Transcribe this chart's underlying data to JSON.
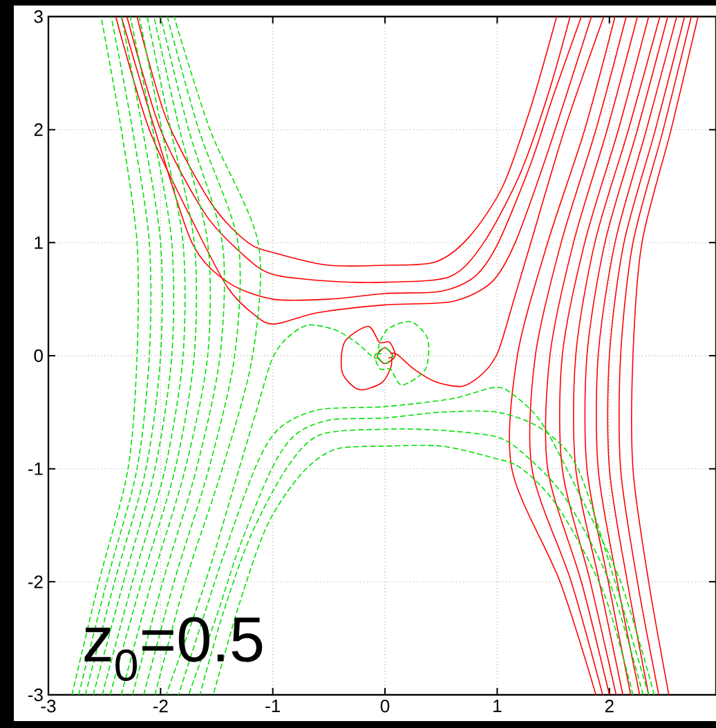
{
  "chart_data": {
    "type": "line",
    "xlim": [
      -3,
      2.95
    ],
    "ylim": [
      -3,
      3
    ],
    "xticks": [
      -3,
      -2,
      -1,
      0,
      1,
      2
    ],
    "yticks": [
      -3,
      -2,
      -1,
      0,
      1,
      2,
      3
    ],
    "grid": true,
    "annotations": [
      "z$_{0}$=0.5"
    ],
    "series": [
      {
        "color": "#ff0000",
        "line_style": "solid",
        "x": [
          -2.21,
          -1.95,
          -1.55,
          -1.22,
          -0.95,
          -0.5,
          0,
          0.45,
          0.75,
          1.05,
          1.3,
          1.53
        ],
        "values": [
          3,
          2.1,
          1.35,
          1.0,
          0.9,
          0.8,
          0.8,
          0.83,
          1.05,
          1.5,
          2.2,
          3
        ]
      },
      {
        "color": "#ff0000",
        "line_style": "solid",
        "x": [
          -2.3,
          -2.0,
          -1.6,
          -1.25,
          -1.0,
          -0.5,
          0,
          0.58,
          0.88,
          1.2,
          1.45,
          1.65
        ],
        "values": [
          3,
          2.0,
          1.25,
          0.88,
          0.72,
          0.66,
          0.65,
          0.7,
          1.0,
          1.6,
          2.3,
          3
        ]
      },
      {
        "color": "#ff0000",
        "line_style": "solid",
        "x": [
          -2.35,
          -2.05,
          -1.72,
          -1.4,
          -1.0,
          -0.5,
          0,
          0.5,
          0.8,
          1.01,
          1.3,
          1.5,
          1.75
        ],
        "values": [
          3,
          2.0,
          1.0,
          0.65,
          0.5,
          0.5,
          0.55,
          0.57,
          0.7,
          1.0,
          1.7,
          2.3,
          3
        ]
      },
      {
        "color": "#ff0000",
        "line_style": "solid",
        "x": [
          -2.4,
          -2.1,
          -1.72,
          -1.4,
          -1.15,
          -0.98,
          -0.6,
          0,
          0.6,
          0.95,
          1.16,
          1.45,
          1.84
        ],
        "values": [
          3,
          2.0,
          1.2,
          0.6,
          0.35,
          0.28,
          0.38,
          0.45,
          0.48,
          0.65,
          1.0,
          1.8,
          3
        ]
      },
      {
        "color": "#ff0000",
        "line_style": "solid",
        "x": [
          0.03,
          0.07,
          0.0,
          -0.07,
          0.0,
          0.09,
          0.04,
          -0.05,
          -0.15,
          -0.36,
          -0.38,
          -0.23,
          -0.03,
          0.05,
          0.06
        ],
        "values": [
          -0.02,
          0.0,
          0.07,
          0.0,
          -0.07,
          0.0,
          0.12,
          0.12,
          0.26,
          0.12,
          -0.15,
          -0.3,
          -0.24,
          -0.11,
          -0.02
        ]
      },
      {
        "color": "#ff0000",
        "line_style": "solid",
        "x": [
          0.05,
          0.11,
          0.26,
          0.45,
          0.69,
          0.88,
          1.01,
          1.15,
          1.3,
          1.6,
          1.95
        ],
        "values": [
          0.02,
          0.01,
          -0.12,
          -0.23,
          -0.27,
          -0.15,
          0.04,
          0.5,
          1.0,
          2.0,
          3
        ]
      },
      {
        "color": "#ff0000",
        "line_style": "solid",
        "x": [
          2.05,
          1.78,
          1.45,
          1.18,
          1.13,
          1.56,
          1.88
        ],
        "values": [
          3,
          2,
          1,
          0,
          -1,
          -2,
          -3
        ]
      },
      {
        "color": "#ff0000",
        "line_style": "solid",
        "x": [
          2.15,
          1.88,
          1.57,
          1.34,
          1.31,
          1.66,
          1.94
        ],
        "values": [
          3,
          2,
          1,
          0,
          -1,
          -2,
          -3
        ]
      },
      {
        "color": "#ff0000",
        "line_style": "solid",
        "x": [
          2.25,
          1.98,
          1.68,
          1.47,
          1.45,
          1.75,
          2.0
        ],
        "values": [
          3,
          2,
          1,
          0,
          -1,
          -2,
          -3
        ]
      },
      {
        "color": "#ff0000",
        "line_style": "solid",
        "x": [
          2.35,
          2.08,
          1.78,
          1.58,
          1.58,
          1.83,
          2.06
        ],
        "values": [
          3,
          2,
          1,
          0,
          -1,
          -2,
          -3
        ]
      },
      {
        "color": "#ff0000",
        "line_style": "solid",
        "x": [
          2.45,
          2.17,
          1.87,
          1.7,
          1.7,
          1.91,
          2.12
        ],
        "values": [
          3,
          2,
          1,
          0,
          -1,
          -2,
          -3
        ]
      },
      {
        "color": "#ff0000",
        "line_style": "solid",
        "x": [
          2.52,
          2.25,
          1.96,
          1.8,
          1.8,
          1.99,
          2.19
        ],
        "values": [
          3,
          2,
          1,
          0,
          -1,
          -2,
          -3
        ]
      },
      {
        "color": "#ff0000",
        "line_style": "solid",
        "x": [
          2.6,
          2.33,
          2.05,
          1.9,
          1.9,
          2.07,
          2.27
        ],
        "values": [
          3,
          2,
          1,
          0,
          -1,
          -2,
          -3
        ]
      },
      {
        "color": "#ff0000",
        "line_style": "solid",
        "x": [
          2.67,
          2.41,
          2.13,
          2.0,
          2.0,
          2.16,
          2.35
        ],
        "values": [
          3,
          2,
          1,
          0,
          -1,
          -2,
          -3
        ]
      },
      {
        "color": "#ff0000",
        "line_style": "solid",
        "x": [
          2.73,
          2.48,
          2.21,
          2.1,
          2.1,
          2.25,
          2.44
        ],
        "values": [
          3,
          2,
          1,
          0,
          -1,
          -2,
          -3
        ]
      },
      {
        "color": "#ff0000",
        "line_style": "solid",
        "x": [
          2.79,
          2.55,
          2.29,
          2.21,
          2.21,
          2.35,
          2.53
        ],
        "values": [
          3,
          2,
          1,
          0,
          -1,
          -2,
          -3
        ]
      },
      {
        "color": "#00e000",
        "line_style": "dashed",
        "x": [
          2.21,
          1.95,
          1.55,
          1.22,
          0.95,
          0.5,
          0,
          -0.45,
          -0.75,
          -1.05,
          -1.3,
          -1.53
        ],
        "values": [
          -3,
          -2.1,
          -1.35,
          -1.0,
          -0.9,
          -0.8,
          -0.8,
          -0.83,
          -1.05,
          -1.5,
          -2.2,
          -3
        ]
      },
      {
        "color": "#00e000",
        "line_style": "dashed",
        "x": [
          2.3,
          2.0,
          1.6,
          1.25,
          1.0,
          0.5,
          0,
          -0.58,
          -0.88,
          -1.2,
          -1.45,
          -1.65
        ],
        "values": [
          -3,
          -2.0,
          -1.25,
          -0.88,
          -0.72,
          -0.66,
          -0.65,
          -0.7,
          -1.0,
          -1.6,
          -2.3,
          -3
        ]
      },
      {
        "color": "#00e000",
        "line_style": "dashed",
        "x": [
          2.35,
          2.05,
          1.72,
          1.4,
          1.0,
          0.5,
          0,
          -0.5,
          -0.8,
          -1.01,
          -1.3,
          -1.5,
          -1.75
        ],
        "values": [
          -3,
          -2.0,
          -1.0,
          -0.65,
          -0.5,
          -0.5,
          -0.55,
          -0.57,
          -0.7,
          -1.0,
          -1.7,
          -2.3,
          -3
        ]
      },
      {
        "color": "#00e000",
        "line_style": "dashed",
        "x": [
          2.4,
          2.1,
          1.72,
          1.4,
          1.15,
          0.98,
          0.6,
          0,
          -0.6,
          -0.95,
          -1.16,
          -1.45,
          -1.84
        ],
        "values": [
          -3,
          -2.0,
          -1.2,
          -0.6,
          -0.35,
          -0.28,
          -0.38,
          -0.45,
          -0.48,
          -0.65,
          -1.0,
          -1.8,
          -3
        ]
      },
      {
        "color": "#00e000",
        "line_style": "dashed",
        "x": [
          -0.03,
          -0.07,
          0.0,
          0.07,
          0.0,
          -0.09,
          -0.04,
          0.05,
          0.15,
          0.36,
          0.38,
          0.23,
          0.03,
          -0.05,
          -0.06
        ],
        "values": [
          0.02,
          0.0,
          -0.07,
          0.0,
          0.07,
          0.0,
          -0.12,
          -0.12,
          -0.26,
          -0.12,
          0.15,
          0.3,
          0.24,
          0.11,
          0.02
        ]
      },
      {
        "color": "#00e000",
        "line_style": "dashed",
        "x": [
          -0.05,
          -0.11,
          -0.26,
          -0.45,
          -0.69,
          -0.88,
          -1.01,
          -1.15,
          -1.3,
          -1.6,
          -1.95
        ],
        "values": [
          -0.02,
          -0.01,
          0.12,
          0.23,
          0.27,
          0.15,
          -0.04,
          -0.5,
          -1.0,
          -2.0,
          -3
        ]
      },
      {
        "color": "#00e000",
        "line_style": "dashed",
        "x": [
          -2.05,
          -1.78,
          -1.45,
          -1.18,
          -1.13,
          -1.56,
          -1.88
        ],
        "values": [
          -3,
          -2,
          -1,
          0,
          1,
          2,
          3
        ]
      },
      {
        "color": "#00e000",
        "line_style": "dashed",
        "x": [
          -2.15,
          -1.88,
          -1.57,
          -1.34,
          -1.31,
          -1.66,
          -1.94
        ],
        "values": [
          -3,
          -2,
          -1,
          0,
          1,
          2,
          3
        ]
      },
      {
        "color": "#00e000",
        "line_style": "dashed",
        "x": [
          -2.25,
          -1.98,
          -1.68,
          -1.47,
          -1.45,
          -1.75,
          -2.0
        ],
        "values": [
          -3,
          -2,
          -1,
          0,
          1,
          2,
          3
        ]
      },
      {
        "color": "#00e000",
        "line_style": "dashed",
        "x": [
          -2.35,
          -2.08,
          -1.78,
          -1.58,
          -1.58,
          -1.83,
          -2.06
        ],
        "values": [
          -3,
          -2,
          -1,
          0,
          1,
          2,
          3
        ]
      },
      {
        "color": "#00e000",
        "line_style": "dashed",
        "x": [
          -2.45,
          -2.17,
          -1.87,
          -1.7,
          -1.7,
          -1.91,
          -2.12
        ],
        "values": [
          -3,
          -2,
          -1,
          0,
          1,
          2,
          3
        ]
      },
      {
        "color": "#00e000",
        "line_style": "dashed",
        "x": [
          -2.52,
          -2.25,
          -1.96,
          -1.8,
          -1.8,
          -1.99,
          -2.19
        ],
        "values": [
          -3,
          -2,
          -1,
          0,
          1,
          2,
          3
        ]
      },
      {
        "color": "#00e000",
        "line_style": "dashed",
        "x": [
          -2.6,
          -2.33,
          -2.05,
          -1.9,
          -1.9,
          -2.07,
          -2.27
        ],
        "values": [
          -3,
          -2,
          -1,
          0,
          1,
          2,
          3
        ]
      },
      {
        "color": "#00e000",
        "line_style": "dashed",
        "x": [
          -2.67,
          -2.41,
          -2.13,
          -2.0,
          -2.0,
          -2.16,
          -2.35
        ],
        "values": [
          -3,
          -2,
          -1,
          0,
          1,
          2,
          3
        ]
      },
      {
        "color": "#00e000",
        "line_style": "dashed",
        "x": [
          -2.73,
          -2.48,
          -2.21,
          -2.1,
          -2.1,
          -2.25,
          -2.44
        ],
        "values": [
          -3,
          -2,
          -1,
          0,
          1,
          2,
          3
        ]
      },
      {
        "color": "#00e000",
        "line_style": "dashed",
        "x": [
          -2.79,
          -2.55,
          -2.29,
          -2.21,
          -2.21,
          -2.35,
          -2.53
        ],
        "values": [
          -3,
          -2,
          -1,
          0,
          1,
          2,
          3
        ]
      }
    ]
  }
}
